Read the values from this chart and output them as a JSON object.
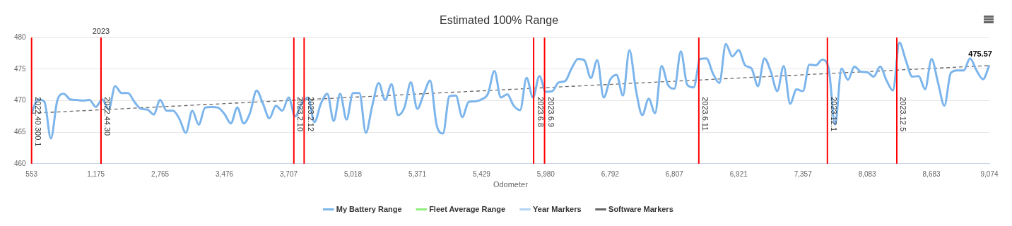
{
  "chart_data": {
    "type": "line",
    "title": "Estimated 100% Range",
    "xlabel": "Odometer",
    "categories": [
      "553",
      null,
      null,
      null,
      null,
      null,
      null,
      null,
      null,
      null,
      "1,175",
      null,
      null,
      null,
      null,
      null,
      null,
      null,
      null,
      null,
      "2,765",
      null,
      null,
      null,
      null,
      null,
      null,
      null,
      null,
      null,
      "3,476",
      null,
      null,
      null,
      null,
      null,
      null,
      null,
      null,
      null,
      "3,707",
      null,
      null,
      null,
      null,
      null,
      null,
      null,
      null,
      null,
      "5,018",
      null,
      null,
      null,
      null,
      null,
      null,
      null,
      null,
      null,
      "5,371",
      null,
      null,
      null,
      null,
      null,
      null,
      null,
      null,
      null,
      "5,429",
      null,
      null,
      null,
      null,
      null,
      null,
      null,
      null,
      null,
      "5,980",
      null,
      null,
      null,
      null,
      null,
      null,
      null,
      null,
      null,
      "6,792",
      null,
      null,
      null,
      null,
      null,
      null,
      null,
      null,
      null,
      "6,807",
      null,
      null,
      null,
      null,
      null,
      null,
      null,
      null,
      null,
      "6,921",
      null,
      null,
      null,
      null,
      null,
      null,
      null,
      null,
      null,
      "7,357",
      null,
      null,
      null,
      null,
      null,
      null,
      null,
      null,
      null,
      "8,083",
      null,
      null,
      null,
      null,
      null,
      null,
      null,
      null,
      null,
      "8,683",
      null,
      null,
      null,
      null,
      null,
      null,
      null,
      null,
      "9,074"
    ],
    "series": [
      {
        "name": "My Battery Range",
        "color": "#7cb5ec",
        "values": [
          468.0,
          470.2,
          469.8,
          464.0,
          470.0,
          471.1,
          470.2,
          470.1,
          470.0,
          470.1,
          469.0,
          470.2,
          468.6,
          472.3,
          471.2,
          471.2,
          469.8,
          468.7,
          468.6,
          467.8,
          470.1,
          468.4,
          468.4,
          467.1,
          464.9,
          468.4,
          466.2,
          468.9,
          469.0,
          468.9,
          467.9,
          466.4,
          468.9,
          466.4,
          468.1,
          471.6,
          469.5,
          467.2,
          469.2,
          468.4,
          470.5,
          467.5,
          469.5,
          470.5,
          466.6,
          469.5,
          471.1,
          466.8,
          471.1,
          467.0,
          471.2,
          471.2,
          464.9,
          469.2,
          472.8,
          470.1,
          472.6,
          467.7,
          468.9,
          472.9,
          468.7,
          471.0,
          473.2,
          466.2,
          464.8,
          470.7,
          470.8,
          467.4,
          469.8,
          469.9,
          470.2,
          471.1,
          474.7,
          470.5,
          471.0,
          469.2,
          468.5,
          473.6,
          470.5,
          473.9,
          471.4,
          471.5,
          472.9,
          473.1,
          475.1,
          476.6,
          476.4,
          473.6,
          476.4,
          470.5,
          473.3,
          474.1,
          470.8,
          478.0,
          471.8,
          467.7,
          470.3,
          468.0,
          475.5,
          472.5,
          471.9,
          477.8,
          472.5,
          472.1,
          476.6,
          476.7,
          474.3,
          472.8,
          479.0,
          477.0,
          478.0,
          475.6,
          475.1,
          472.3,
          476.7,
          474.6,
          471.5,
          475.5,
          469.5,
          471.8,
          471.5,
          475.7,
          475.6,
          476.5,
          475.1,
          466.2,
          475.1,
          473.3,
          475.4,
          474.6,
          474.5,
          473.8,
          475.4,
          473.2,
          471.6,
          479.2,
          476.4,
          473.8,
          473.9,
          471.8,
          476.6,
          472.9,
          469.2,
          474.4,
          474.8,
          474.8,
          476.7,
          474.8,
          473.4,
          475.6
        ]
      },
      {
        "name": "Fleet Average Range",
        "color": "#90ed7d",
        "values": [
          null,
          null,
          null,
          null,
          null,
          null,
          null,
          null,
          null,
          null,
          null,
          null,
          null,
          null,
          null,
          null,
          null,
          null,
          null,
          null,
          null,
          null,
          null,
          null,
          null,
          null,
          null,
          null,
          null,
          null,
          null,
          null,
          null,
          null,
          null,
          null,
          null,
          null,
          null,
          null,
          null,
          null,
          null,
          null,
          null,
          null,
          null,
          null,
          null,
          null,
          null,
          null,
          null,
          null,
          null,
          null,
          null,
          null,
          null,
          null,
          null,
          null,
          null,
          null,
          null,
          null,
          null,
          null,
          null,
          null,
          null,
          null,
          null,
          null,
          null,
          null,
          null,
          null,
          null,
          null,
          null,
          null,
          null,
          null,
          null,
          null,
          null,
          null,
          null,
          null,
          null,
          null,
          null,
          null,
          null,
          null,
          null,
          null,
          null,
          null,
          null,
          null,
          null,
          null,
          null,
          null,
          null,
          null,
          null,
          null,
          null,
          null,
          null,
          null,
          null,
          null,
          null,
          null,
          null,
          null,
          null,
          null,
          null,
          null,
          null,
          null,
          null,
          null,
          null,
          null,
          null,
          null,
          null,
          null,
          null,
          null,
          null,
          null,
          null,
          null,
          null,
          null,
          null,
          null,
          null,
          null,
          null,
          null,
          null,
          null
        ]
      },
      {
        "name": "Year Markers",
        "color": "#b5d3f5",
        "values": [
          null,
          null,
          null,
          null,
          null,
          null,
          null,
          null,
          null,
          null,
          null,
          null,
          null,
          null,
          null,
          null,
          null,
          null,
          null,
          null,
          null,
          null,
          null,
          null,
          null,
          null,
          null,
          null,
          null,
          null,
          null,
          null,
          null,
          null,
          null,
          null,
          null,
          null,
          null,
          null,
          null,
          null,
          null,
          null,
          null,
          null,
          null,
          null,
          null,
          null,
          null,
          null,
          null,
          null,
          null,
          null,
          null,
          null,
          null,
          null,
          null,
          null,
          null,
          null,
          null,
          null,
          null,
          null,
          null,
          null,
          null,
          null,
          null,
          null,
          null,
          null,
          null,
          null,
          null,
          null,
          null,
          null,
          null,
          null,
          null,
          null,
          null,
          null,
          null,
          null,
          null,
          null,
          null,
          null,
          null,
          null,
          null,
          null,
          null,
          null,
          null,
          null,
          null,
          null,
          null,
          null,
          null,
          null,
          null,
          null,
          null,
          null,
          null,
          null,
          null,
          null,
          null,
          null,
          null,
          null,
          null,
          null,
          null,
          null,
          null,
          null,
          null,
          null,
          null,
          null,
          null,
          null,
          null,
          null,
          null,
          null,
          null,
          null,
          null,
          null,
          null,
          null,
          null,
          null,
          null,
          null,
          null,
          null,
          null,
          null
        ]
      },
      {
        "name": "Software Markers",
        "color": "#666666",
        "values": [
          null,
          null,
          null,
          null,
          null,
          null,
          null,
          null,
          null,
          null,
          null,
          null,
          null,
          null,
          null,
          null,
          null,
          null,
          null,
          null,
          null,
          null,
          null,
          null,
          null,
          null,
          null,
          null,
          null,
          null,
          null,
          null,
          null,
          null,
          null,
          null,
          null,
          null,
          null,
          null,
          null,
          null,
          null,
          null,
          null,
          null,
          null,
          null,
          null,
          null,
          null,
          null,
          null,
          null,
          null,
          null,
          null,
          null,
          null,
          null,
          null,
          null,
          null,
          null,
          null,
          null,
          null,
          null,
          null,
          null,
          null,
          null,
          null,
          null,
          null,
          null,
          null,
          null,
          null,
          null,
          null,
          null,
          null,
          null,
          null,
          null,
          null,
          null,
          null,
          null,
          null,
          null,
          null,
          null,
          null,
          null,
          null,
          null,
          null,
          null,
          null,
          null,
          null,
          null,
          null,
          null,
          null,
          null,
          null,
          null,
          null,
          null,
          null,
          null,
          null,
          null,
          null,
          null,
          null,
          null,
          null,
          null,
          null,
          null,
          null,
          null,
          null,
          null,
          null,
          null,
          null,
          null,
          null,
          null,
          null,
          null,
          null,
          null,
          null,
          null,
          null,
          null,
          null,
          null,
          null,
          null,
          null,
          null,
          null,
          null
        ]
      },
      {
        "type": "line",
        "color": "#666666",
        "line_style": "dashed",
        "x": [
          "553",
          "9,074"
        ],
        "values": [
          468.0,
          475.57
        ],
        "value_labels": [
          null,
          "475.57"
        ]
      }
    ],
    "ylim": [
      460,
      480
    ],
    "yticks": [
      460,
      465,
      470,
      475,
      480
    ],
    "grid": "y",
    "legend": "bottom",
    "annotations": [
      "2023",
      "2022.40.300.1",
      "2022.44.30",
      "2023.2.10",
      "2023.2.12",
      "2023.6.8",
      "2023.6.9",
      "2023.6.11",
      "2023.12.1",
      "2023.12.5"
    ]
  }
}
